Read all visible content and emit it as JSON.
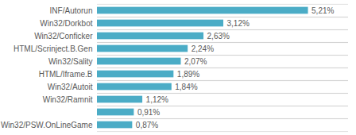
{
  "chart_data": {
    "type": "bar",
    "orientation": "horizontal",
    "categories": [
      "Win32/PSW.OnLineGame",
      null,
      "Win32/Ramnit",
      "Win32/Autoit",
      "HTML/Iframe.B",
      "Win32/Sality",
      "HTML/Scrinject.B.Gen",
      "Win32/Conficker",
      "Win32/Dorkbot",
      "INF/Autorun"
    ],
    "values": [
      0.87,
      0.91,
      1.12,
      1.84,
      1.89,
      2.07,
      2.24,
      2.63,
      3.12,
      5.21
    ],
    "value_labels": [
      "0,87%",
      "0,91%",
      "1,12%",
      "1,84%",
      "1,89%",
      "2,07%",
      "2,24%",
      "2,63%",
      "3,12%",
      "5,21%"
    ],
    "data_labels": true,
    "color": "#4BACC6",
    "xlim": [
      0,
      6.2
    ],
    "tick_labels": "y",
    "grid": true
  }
}
